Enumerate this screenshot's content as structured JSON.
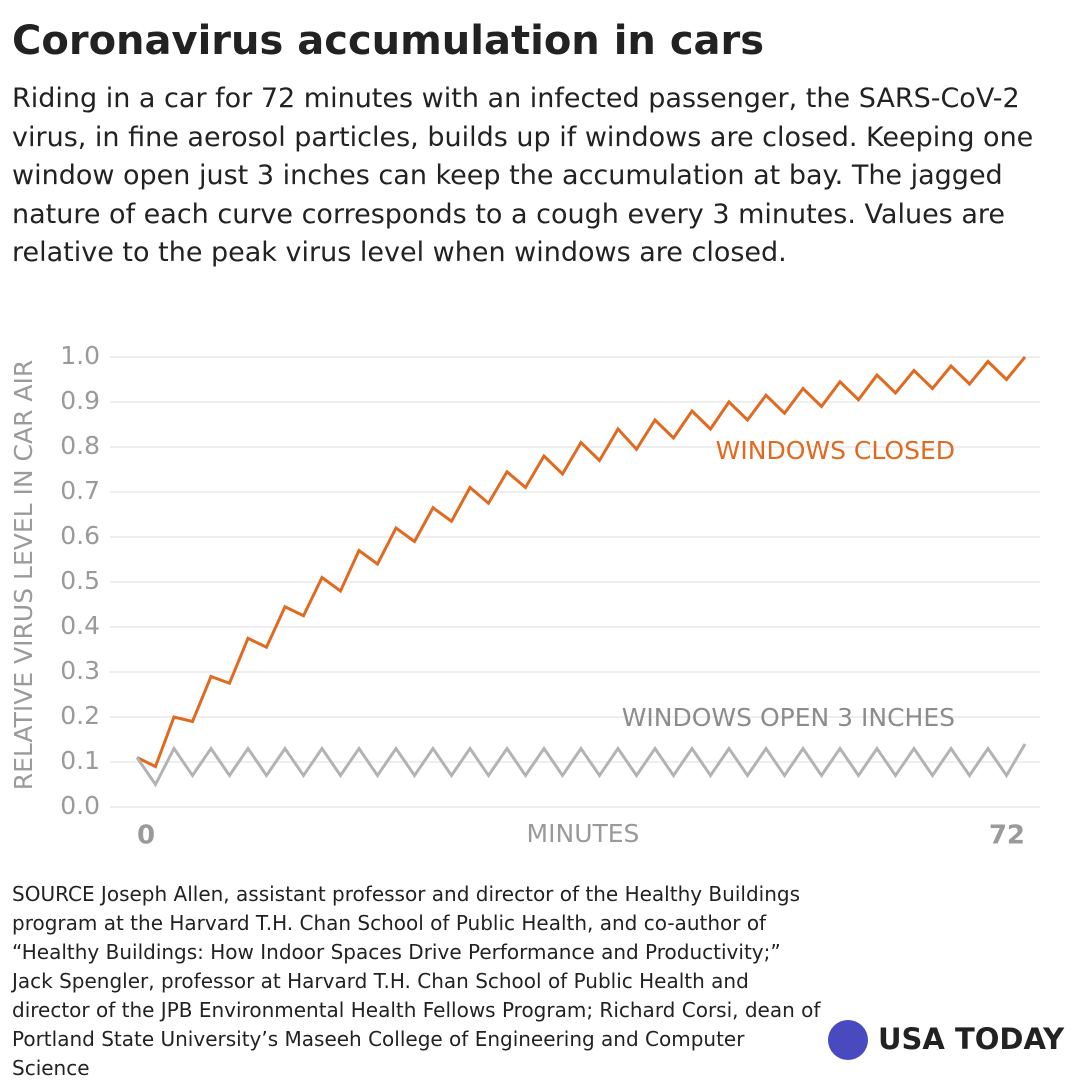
{
  "chart_data": {
    "type": "line",
    "title": "Coronavirus accumulation in cars",
    "subtitle": "Riding in a car for 72 minutes with an infected passenger, the SARS-CoV-2 virus, in fine aerosol particles, builds up if windows are closed. Keeping one window open just 3 inches can keep the accumulation at bay. The jagged nature of each curve corresponds to a cough every 3 minutes. Values are relative to the peak virus level when windows are closed.",
    "y_label": "RELATIVE VIRUS LEVEL IN CAR AIR",
    "x_label": "MINUTES",
    "x": [
      0,
      1.5,
      3,
      4.5,
      6,
      7.5,
      9,
      10.5,
      12,
      13.5,
      15,
      16.5,
      18,
      19.5,
      21,
      22.5,
      24,
      25.5,
      27,
      28.5,
      30,
      31.5,
      33,
      34.5,
      36,
      37.5,
      39,
      40.5,
      42,
      43.5,
      45,
      46.5,
      48,
      49.5,
      51,
      52.5,
      54,
      55.5,
      57,
      58.5,
      60,
      61.5,
      63,
      64.5,
      66,
      67.5,
      69,
      70.5,
      72
    ],
    "series": [
      {
        "name": "WINDOWS CLOSED",
        "color": "#e06a1f",
        "values": [
          0.11,
          0.09,
          0.2,
          0.19,
          0.29,
          0.275,
          0.375,
          0.355,
          0.445,
          0.425,
          0.51,
          0.48,
          0.57,
          0.54,
          0.62,
          0.59,
          0.665,
          0.635,
          0.71,
          0.675,
          0.745,
          0.71,
          0.78,
          0.74,
          0.81,
          0.77,
          0.84,
          0.795,
          0.86,
          0.82,
          0.88,
          0.84,
          0.9,
          0.86,
          0.915,
          0.875,
          0.93,
          0.89,
          0.945,
          0.905,
          0.96,
          0.92,
          0.97,
          0.93,
          0.98,
          0.94,
          0.99,
          0.95,
          1.0
        ]
      },
      {
        "name": "WINDOWS OPEN 3 INCHES",
        "color": "#b3b3b3",
        "values": [
          0.11,
          0.05,
          0.13,
          0.07,
          0.13,
          0.07,
          0.13,
          0.07,
          0.13,
          0.07,
          0.13,
          0.07,
          0.13,
          0.07,
          0.13,
          0.07,
          0.13,
          0.07,
          0.13,
          0.07,
          0.13,
          0.07,
          0.13,
          0.07,
          0.13,
          0.07,
          0.13,
          0.07,
          0.13,
          0.07,
          0.13,
          0.07,
          0.13,
          0.07,
          0.13,
          0.07,
          0.13,
          0.07,
          0.13,
          0.07,
          0.13,
          0.07,
          0.13,
          0.07,
          0.13,
          0.07,
          0.13,
          0.07,
          0.14
        ]
      }
    ],
    "xlim": [
      0,
      72
    ],
    "xticks": [
      0,
      72
    ],
    "ylim": [
      0,
      1
    ],
    "yticks": [
      {
        "value": 0,
        "label": "0.0"
      },
      0.1,
      0.2,
      0.3,
      0.4,
      0.5,
      0.6,
      0.7,
      0.8,
      0.9,
      {
        "value": 1,
        "label": "1.0"
      }
    ],
    "grid": true,
    "source": "SOURCE Joseph Allen, assistant professor and director of the Healthy Buildings program at the Harvard T.H. Chan School of Public Health, and co-author of “Healthy Buildings: How Indoor Spaces Drive Performance and Productivity;” Jack Spengler, professor at Harvard T.H. Chan School of Public Health and director of the JPB Environmental Health Fellows Program; Richard Corsi, dean of Portland State University’s Maseeh College of Engineering and Computer Science",
    "brand": "USA TODAY"
  }
}
